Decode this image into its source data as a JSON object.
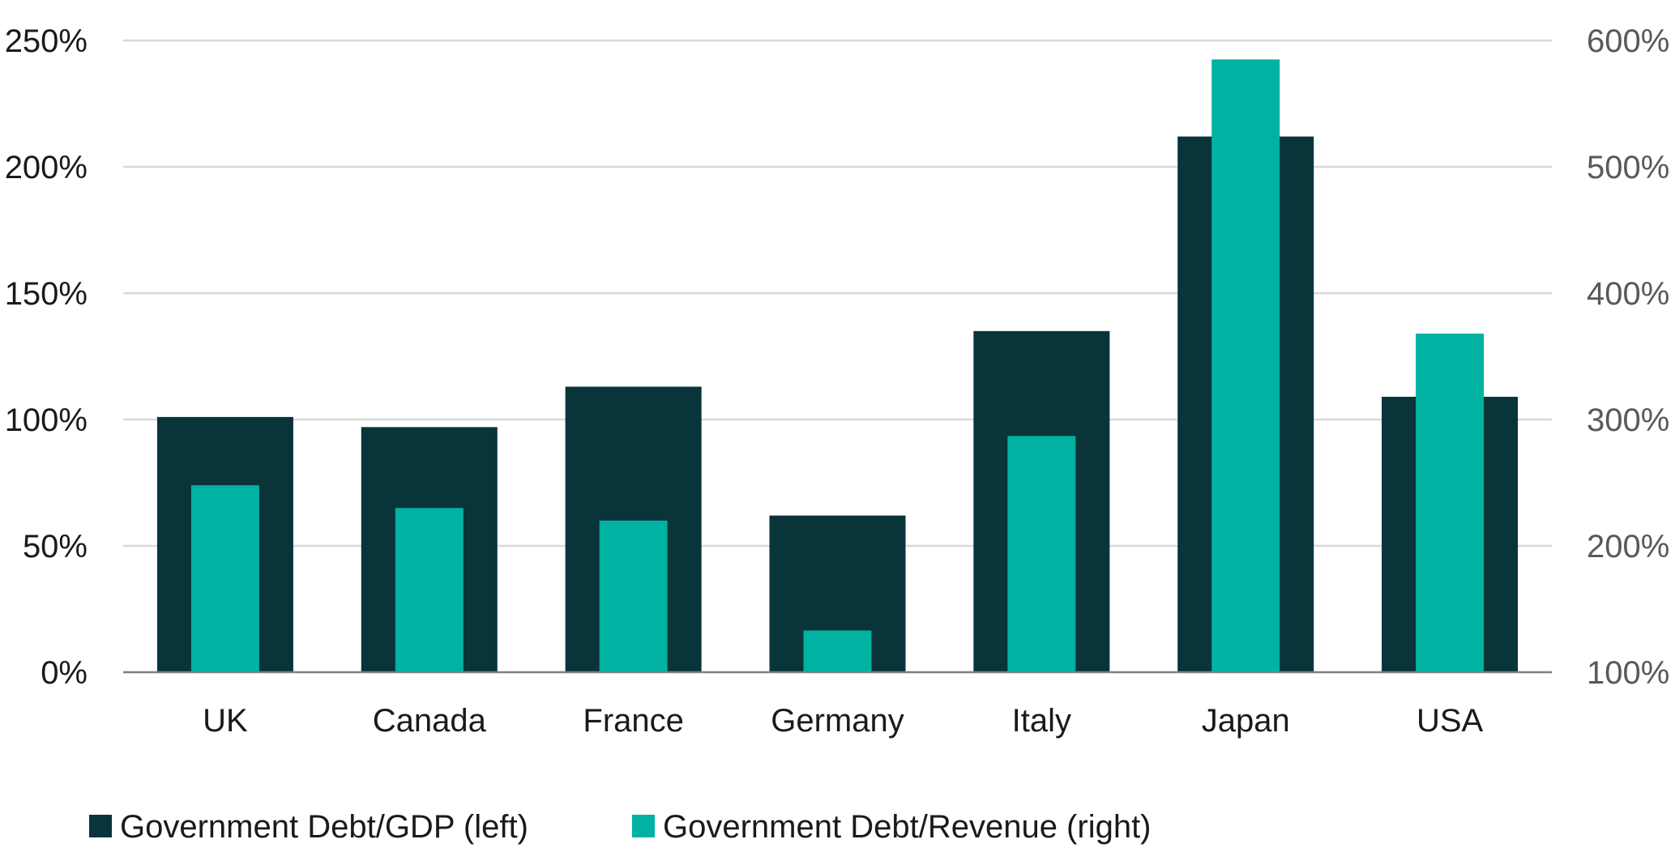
{
  "chart_data": {
    "type": "bar",
    "categories": [
      "UK",
      "Canada",
      "France",
      "Germany",
      "Italy",
      "Japan",
      "USA"
    ],
    "series": [
      {
        "name": "Government Debt/GDP (left)",
        "axis": "left",
        "color": "#08343a",
        "values": [
          101,
          97,
          113,
          62,
          135,
          212,
          109
        ]
      },
      {
        "name": "Government Debt/Revenue (right)",
        "axis": "right",
        "color": "#00b2a2",
        "values": [
          248,
          230,
          220,
          133,
          287,
          585,
          368
        ]
      }
    ],
    "y_left": {
      "ylim": [
        0,
        250
      ],
      "ticks": [
        0,
        50,
        100,
        150,
        200,
        250
      ],
      "tick_labels": [
        "0%",
        "50%",
        "100%",
        "150%",
        "200%",
        "250%"
      ]
    },
    "y_right": {
      "ylim": [
        100,
        600
      ],
      "ticks": [
        100,
        200,
        300,
        400,
        500,
        600
      ],
      "tick_labels": [
        "100%",
        "200%",
        "300%",
        "400%",
        "500%",
        "600%"
      ]
    },
    "grid": true,
    "legend": "bottom-left",
    "title": "",
    "xlabel": "",
    "ylabel": ""
  }
}
